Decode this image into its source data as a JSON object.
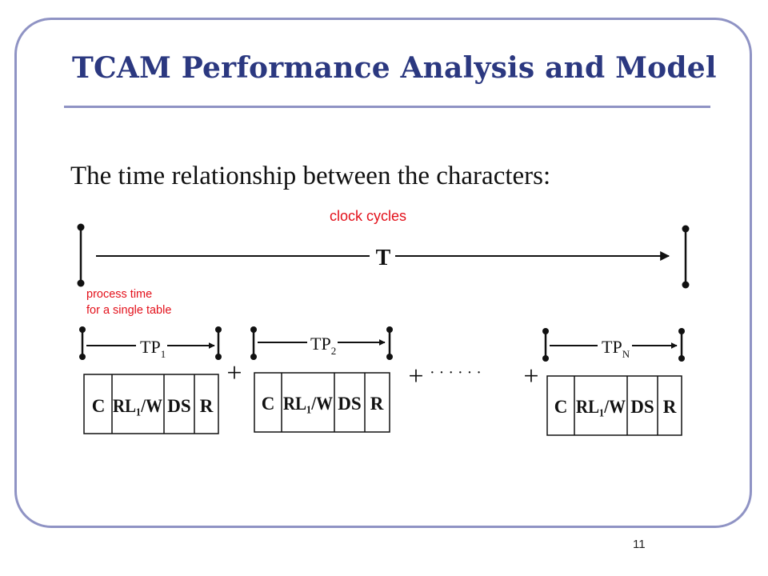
{
  "slide": {
    "title": "TCAM Performance Analysis and Model",
    "subtitle": "The time relationship between the characters:",
    "page_number": "11"
  },
  "annotations": {
    "clock_cycles": "clock cycles",
    "process_time_line1": "process time",
    "process_time_line2": "for a single table"
  },
  "timeline": {
    "total_label": "T"
  },
  "tables": [
    {
      "tp": "TP",
      "sub": "1",
      "fields": [
        "C",
        "RL₁/W",
        "DS",
        "R"
      ]
    },
    {
      "tp": "TP",
      "sub": "2",
      "fields": [
        "C",
        "RL₁/W",
        "DS",
        "R"
      ]
    },
    {
      "tp": "TP",
      "sub": "N",
      "fields": [
        "C",
        "RL₁/W",
        "DS",
        "R"
      ]
    }
  ],
  "operators": {
    "plus": "+",
    "ellipsis": "· · · · · ·"
  },
  "colors": {
    "frame": "#8f93c4",
    "title": "#2b3880",
    "annotation": "#e3101a"
  }
}
